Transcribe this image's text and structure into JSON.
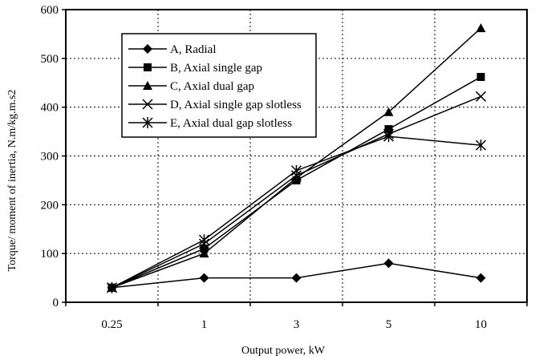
{
  "chart_data": {
    "type": "line",
    "xlabel": "Output power, kW",
    "ylabel": "Torque/ moment of inertia, N.m/kg.m.s2",
    "categories": [
      "0.25",
      "1",
      "3",
      "5",
      "10"
    ],
    "ylim": [
      0,
      600
    ],
    "yticks": [
      0,
      100,
      200,
      300,
      400,
      500,
      600
    ],
    "grid": true,
    "legend_position": "top-left",
    "series": [
      {
        "name": "A, Radial",
        "marker": "diamond",
        "values": [
          30,
          50,
          50,
          80,
          50
        ]
      },
      {
        "name": "B, Axial single gap",
        "marker": "square",
        "values": [
          30,
          110,
          250,
          355,
          462
        ]
      },
      {
        "name": "C, Axial dual gap",
        "marker": "triangle",
        "values": [
          30,
          100,
          255,
          390,
          562
        ]
      },
      {
        "name": "D, Axial single gap slotless",
        "marker": "x",
        "values": [
          30,
          120,
          260,
          345,
          422
        ]
      },
      {
        "name": "E, Axial dual gap slotless",
        "marker": "asterisk",
        "values": [
          30,
          128,
          270,
          340,
          322
        ]
      }
    ]
  }
}
